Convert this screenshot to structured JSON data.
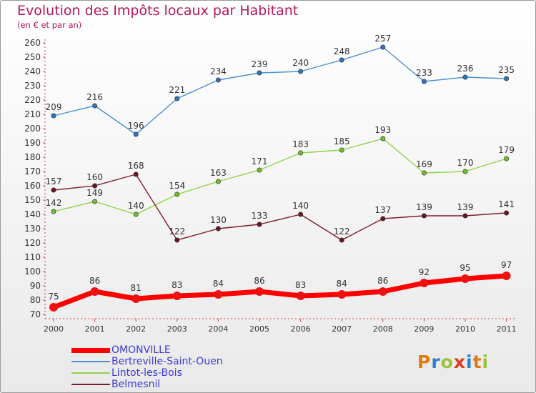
{
  "title": "Evolution des Impôts locaux par Habitant",
  "subtitle": "(en € et par an)",
  "logo": {
    "text": "Proxiti",
    "colors": [
      "#e07b12",
      "#2e7fd1",
      "#9bc33a",
      "#d93b1f",
      "#2e7fd1",
      "#e07b12",
      "#9bc33a"
    ]
  },
  "chart_data": {
    "type": "line",
    "x": [
      "2000",
      "2001",
      "2002",
      "2003",
      "2004",
      "2005",
      "2006",
      "2007",
      "2008",
      "2009",
      "2010",
      "2011"
    ],
    "ylim": [
      70,
      260
    ],
    "yticks": [
      70,
      80,
      90,
      100,
      110,
      120,
      130,
      140,
      150,
      160,
      170,
      180,
      190,
      200,
      210,
      220,
      230,
      240,
      250,
      260
    ],
    "grid": false,
    "legend_position": "bottom-left",
    "series": [
      {
        "name": "OMONVILLE",
        "color": "#ff0000",
        "marker": "#ee1111",
        "values": [
          75,
          86,
          81,
          83,
          84,
          86,
          83,
          84,
          86,
          92,
          95,
          97
        ]
      },
      {
        "name": "Bertreville-Saint-Ouen",
        "color": "#4a8fcf",
        "marker": "#2e74b8",
        "values": [
          209,
          216,
          196,
          221,
          234,
          239,
          240,
          248,
          257,
          233,
          236,
          235
        ]
      },
      {
        "name": "Lintot-les-Bois",
        "color": "#8fd24a",
        "marker": "#6fbf2a",
        "values": [
          142,
          149,
          140,
          154,
          163,
          171,
          183,
          185,
          193,
          169,
          170,
          179
        ]
      },
      {
        "name": "Belmesnil",
        "color": "#7a1f2a",
        "marker": "#6a1520",
        "values": [
          157,
          160,
          168,
          122,
          130,
          133,
          140,
          122,
          137,
          139,
          139,
          141
        ]
      }
    ]
  }
}
